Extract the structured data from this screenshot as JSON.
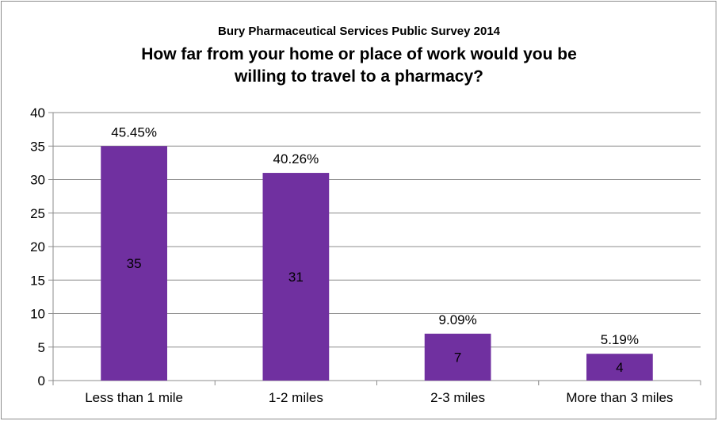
{
  "chart_data": {
    "type": "bar",
    "title": "Bury Pharmaceutical Services Public Survey 2014",
    "subtitle_lines": [
      "How far from your home or place of work would you be",
      "willing to travel to a pharmacy?"
    ],
    "categories": [
      "Less than 1 mile",
      "1-2 miles",
      "2-3 miles",
      "More than 3 miles"
    ],
    "values": [
      35,
      31,
      7,
      4
    ],
    "percent_labels": [
      "45.45%",
      "40.26%",
      "9.09%",
      "5.19%"
    ],
    "ylim": [
      0,
      40
    ],
    "yticks": [
      0,
      5,
      10,
      15,
      20,
      25,
      30,
      35,
      40
    ],
    "grid": true,
    "legend": "none",
    "bar_color": "#7030a0"
  }
}
